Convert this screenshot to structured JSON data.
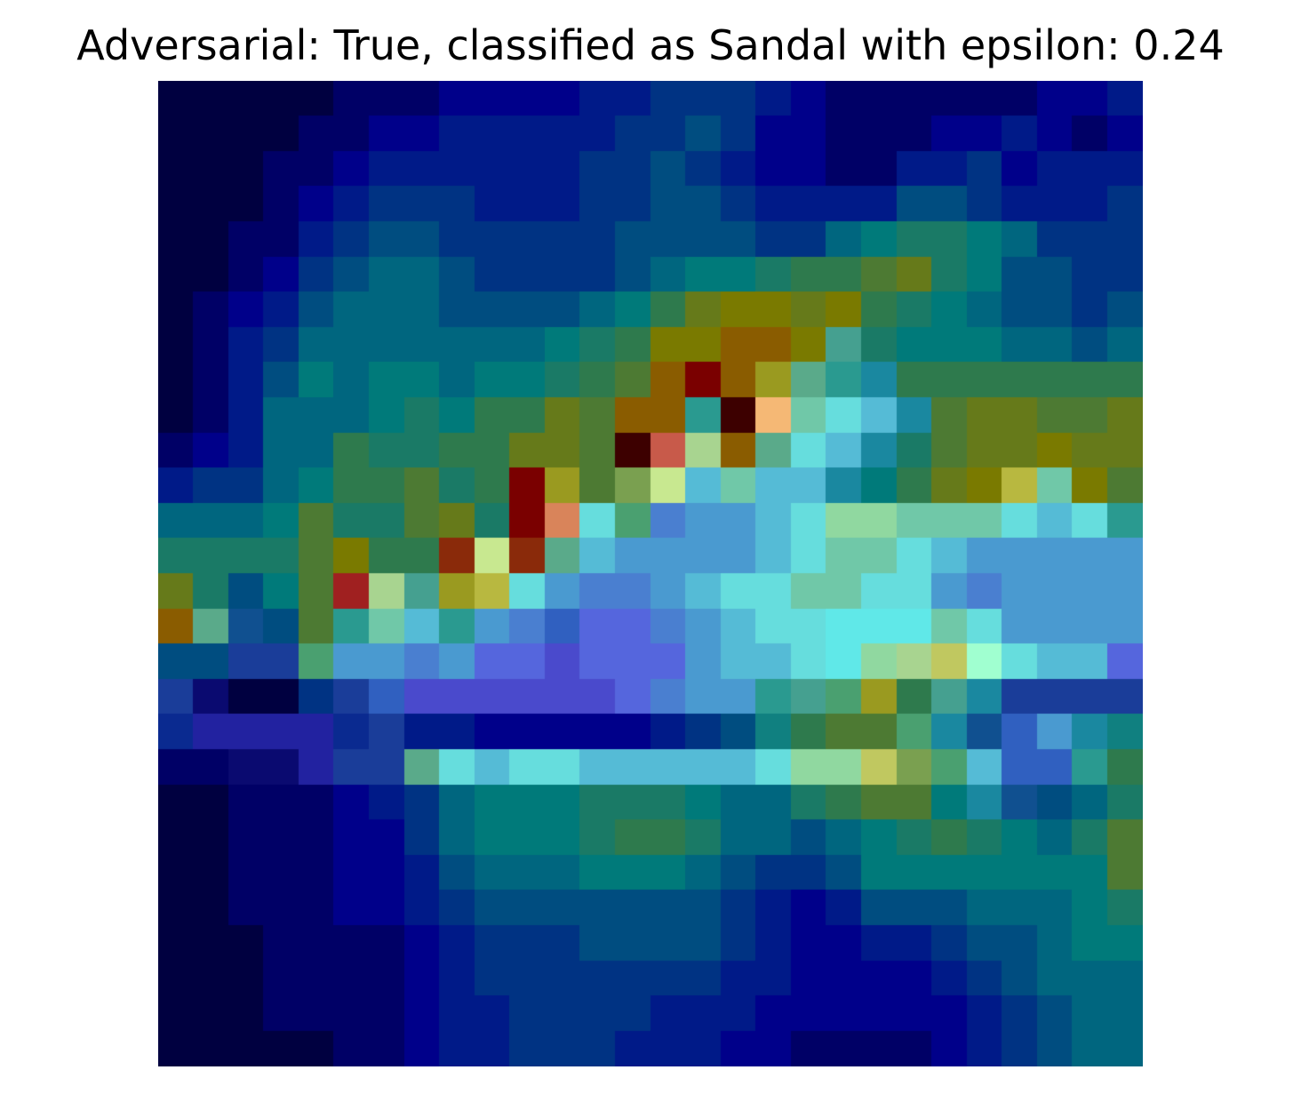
{
  "figure": {
    "title": "Adversarial: True, classified as Sandal with epsilon: 0.24"
  },
  "image": {
    "description_name": "heatmap-overlay",
    "grid_size": 28,
    "colormap": "jet",
    "palette": {
      "A": "#000040",
      "B": "#000066",
      "C": "#00008a",
      "D": "#001a88",
      "E": "#003383",
      "F": "#004d80",
      "G": "#00667f",
      "H": "#007a7a",
      "I": "#1a7a66",
      "J": "#2e7a4d",
      "K": "#4d7a33",
      "L": "#667a1a",
      "M": "#7a7a00",
      "N": "#8a5c00",
      "O": "#8a2a0a",
      "P": "#7a0000",
      "Q": "#3d0000",
      "R": "#c85a4a",
      "S": "#f5b875",
      "T": "#d9845a",
      "U": "#a8d490",
      "V": "#c8e890",
      "W": "#f0f080",
      "X": "#66dddd",
      "Y": "#55bbd6",
      "Z": "#4a9ad0",
      "a": "#4a7fd0",
      "b": "#5566dd",
      "c": "#4a4acc",
      "d": "#2222a0",
      "e": "#1a3d99",
      "f": "#90d8a0",
      "g": "#70c8a8",
      "h": "#60e8e8",
      "i": "#a0ffd0",
      "j": "#80f8f8",
      "k": "#45a090",
      "l": "#2a9a90",
      "m": "#c0c860",
      "n": "#7aa050",
      "o": "#4aa070",
      "p": "#1a88a0",
      "q": "#3060c0",
      "r": "#0a0a70",
      "s": "#101880",
      "t": "#0a2a90",
      "u": "#105090",
      "v": "#108080",
      "w": "#a02020",
      "x": "#5aaa8a",
      "y": "#9a9a20",
      "z": "#b8b840"
    },
    "rows": [
      "AAAAABBBCCCCDDEEEDCBBBBBBCCDDE",
      "AAAABBCCDDDDDEEFECCBBBCCDCBCDE",
      "AAABBCDDDDDDEEFEDCCBBDDECDDDEE",
      "AAABCDEEEDDDEEFFEDDDDFFEDDDEEE",
      "AABBDEFFEEEEEFFFFEEGHIIHGEEEEE",
      "AABCEFGGFEEEEFGHHIJJKLIHFFEEEF",
      "ABCDFGGGFFFFGHJLMMLMJIHGFFEFFF",
      "ABDEGGGGGGGHIJMMNNMkIHHHGGFGGG",
      "ABDFHGHHGHHIJKNPNyxlpJJJJJJJII",
      "ABDGGGHIHJJLKNNlQSgXYpKLLKKLKK",
      "BCDGGJIIJJLLKQRUNxXYpIKLLMLLLK",
      "DEEGHJJKIJPyKnVYgYYpHJLMzgMKKK",
      "GGGHKIIKLIPTXoaZZYXffgggXYXlI",
      "IIIIKMJJOVOxYZZZZYXggXYZZZZZI",
      "LIFHKwUkyzXZaaZYXXggXXZaZZZZJ",
      "NxuFKlgYlZaqbbaZYXXhhhgXZZZZF",
      "FFeeoZZaZbbcbbbZYYXhfUmiXYYbu",
      "erAAEeqccccccbaZZlkoyJkpeeeeF",
      "tddddteDDCCCCCDEFvJKKopuqZpv",
      "BBrrdeexXYXXYYYYYXffmnoYqqlJ",
      "AABBBCDEGHHHIIIHGGIJKKHpuFGII",
      "AABBBCCEGHHHIJJIGGFGHIJIHGIKK",
      "AABBBCCDFGGGHHHGFEEFHHHHHHHKK",
      "AABBBCCDEFFFFFFFEDCDFFFGGGHII",
      "AAABBBBCDEEEFFFFEDCCDDEFFGHHH",
      "AAABBBBCDEEEEEEEDDCCCCDEFGGGG",
      "AAABBBBCDDEEEEDDDCCCCCCDEFGGG",
      "AAAAABBCDDEEEDDDCCBBBBCDEFGGG"
    ]
  }
}
